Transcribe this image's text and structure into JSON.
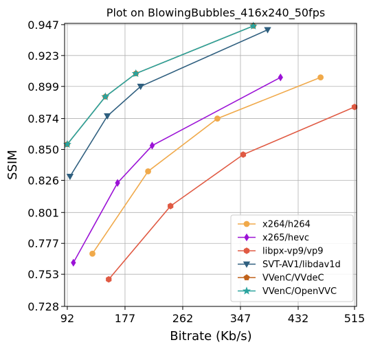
{
  "chart_data": {
    "type": "line",
    "title": "Plot on BlowingBubbles_416x240_50fps",
    "xlabel": "Bitrate (Kb/s)",
    "ylabel": "SSIM",
    "xlim": [
      88,
      518
    ],
    "ylim": [
      0.728,
      0.948
    ],
    "x_ticks": [
      92,
      177,
      262,
      347,
      432,
      515
    ],
    "x_tick_labels": [
      "92",
      "177",
      "262",
      "347",
      "432",
      "515"
    ],
    "y_ticks": [
      0.728,
      0.753,
      0.777,
      0.801,
      0.826,
      0.85,
      0.874,
      0.899,
      0.923,
      0.947
    ],
    "y_tick_labels": [
      "0.728",
      "0.753",
      "0.777",
      "0.801",
      "0.826",
      "0.850",
      "0.874",
      "0.899",
      "0.923",
      "0.947"
    ],
    "grid": true,
    "legend_position": "bottom-right",
    "series": [
      {
        "name": "x264/h264",
        "color": "#f0a94a",
        "marker": "circle",
        "x": [
          129,
          211,
          313,
          465
        ],
        "y": [
          0.769,
          0.833,
          0.874,
          0.906
        ]
      },
      {
        "name": "x265/hevc",
        "color": "#9b12d6",
        "marker": "diamond",
        "x": [
          101,
          166,
          217,
          406
        ],
        "y": [
          0.762,
          0.824,
          0.853,
          0.906
        ]
      },
      {
        "name": "libpx-vp9/vp9",
        "color": "#e05a43",
        "marker": "hexagon",
        "x": [
          153,
          244,
          351,
          515
        ],
        "y": [
          0.749,
          0.806,
          0.846,
          0.883
        ]
      },
      {
        "name": "SVT-AV1/libdav1d",
        "color": "#2f5f7f",
        "marker": "triangle-down",
        "x": [
          96,
          151,
          200,
          387
        ],
        "y": [
          0.829,
          0.876,
          0.899,
          0.943
        ]
      },
      {
        "name": "VVenC/VVdeC",
        "color": "#c0621a",
        "marker": "pentagon",
        "x": [
          92,
          148,
          193,
          366
        ],
        "y": [
          0.854,
          0.891,
          0.909,
          0.946
        ]
      },
      {
        "name": "VVenC/OpenVVC",
        "color": "#2aa39e",
        "marker": "star",
        "x": [
          92,
          148,
          193,
          366
        ],
        "y": [
          0.854,
          0.891,
          0.909,
          0.946
        ]
      }
    ]
  }
}
